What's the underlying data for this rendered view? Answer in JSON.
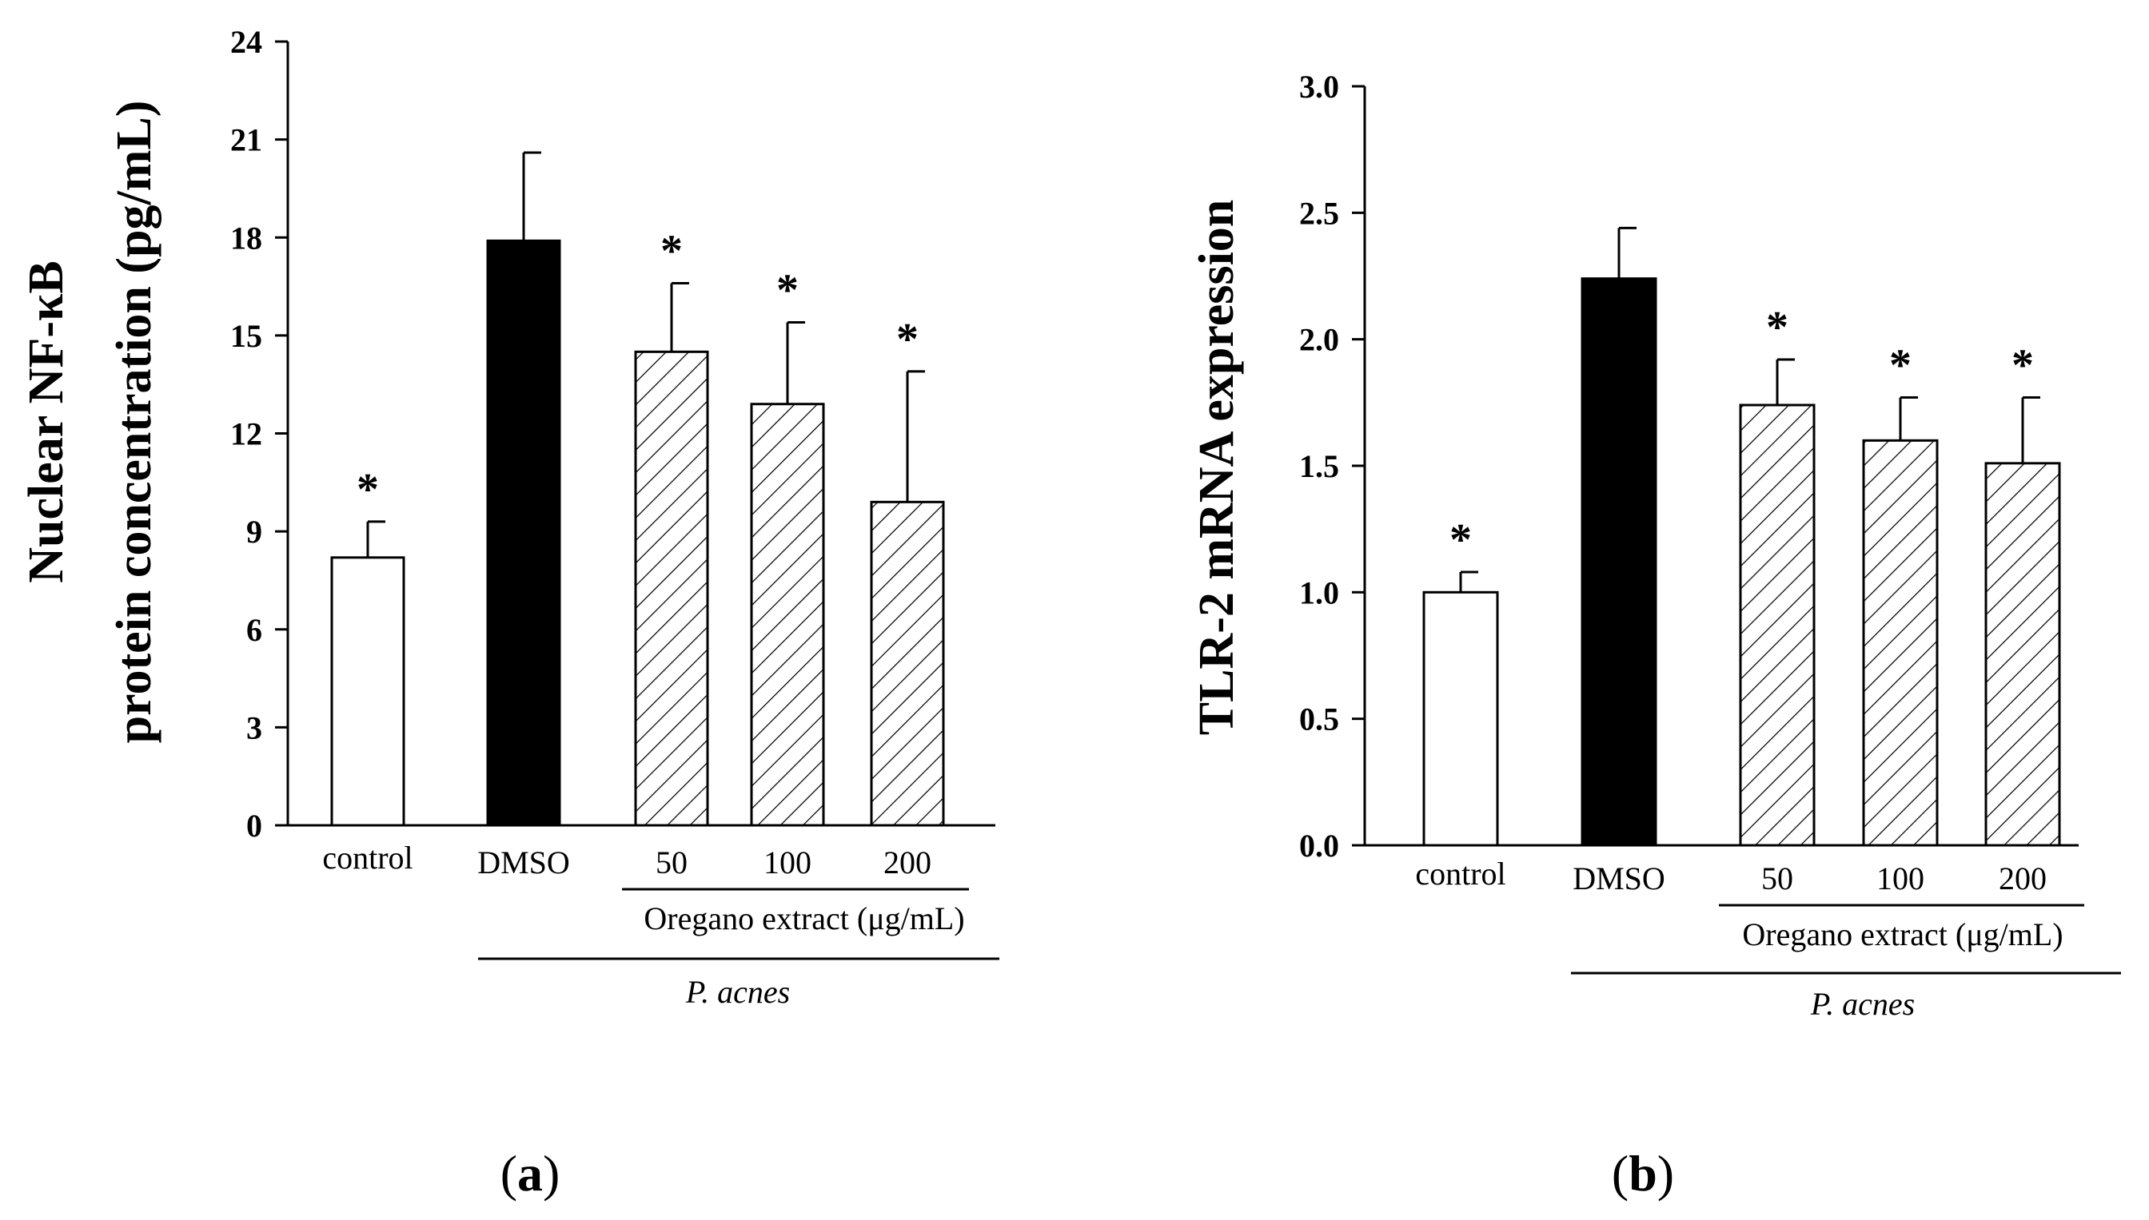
{
  "chart_data": [
    {
      "panel": "(a)",
      "panel_letter": "a",
      "type": "bar",
      "categories": [
        "control",
        "DMSO",
        "50",
        "100",
        "200"
      ],
      "values": [
        8.2,
        17.9,
        14.5,
        12.9,
        9.9
      ],
      "errors": [
        1.1,
        2.7,
        2.1,
        2.5,
        4.0
      ],
      "fills": [
        "white",
        "black",
        "hatch",
        "hatch",
        "hatch"
      ],
      "significance": [
        "*",
        "",
        "*",
        "*",
        "*"
      ],
      "ylabel_line1": "Nuclear NF-κB",
      "ylabel_line2": "protein concentration (pg/mL)",
      "ylim": [
        0,
        24
      ],
      "yticks": [
        "0",
        "3",
        "6",
        "9",
        "12",
        "15",
        "18",
        "21",
        "24"
      ],
      "group_label": "Oregano extract (μg/mL)",
      "group_label_bold": "Oregano extract (µg/mL)",
      "species_label": "P. acnes"
    },
    {
      "panel": "(b)",
      "panel_letter": "b",
      "type": "bar",
      "categories": [
        "control",
        "DMSO",
        "50",
        "100",
        "200"
      ],
      "values": [
        1.0,
        2.24,
        1.74,
        1.6,
        1.51
      ],
      "errors": [
        0.08,
        0.2,
        0.18,
        0.17,
        0.26
      ],
      "fills": [
        "white",
        "black",
        "hatch",
        "hatch",
        "hatch"
      ],
      "significance": [
        "*",
        "",
        "*",
        "*",
        "*"
      ],
      "ylabel": "TLR-2 mRNA expression",
      "ylim": [
        0,
        3.0
      ],
      "yticks": [
        "0.0",
        "0.5",
        "1.0",
        "1.5",
        "2.0",
        "2.5",
        "3.0"
      ],
      "group_label": "Oregano extract (μg/mL)",
      "species_label": "P. acnes"
    }
  ]
}
